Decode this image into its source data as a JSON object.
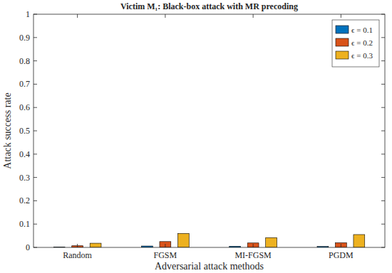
{
  "chart_data": {
    "type": "bar",
    "title": "Victim M₁: Black-box attack with MR precoding",
    "x_label": "Adversarial attack methods",
    "y_label": "Attack success rate",
    "categories": [
      "Random",
      "FGSM",
      "MI-FGSM",
      "PGDM"
    ],
    "series": [
      {
        "name": "ϵ = 0.1",
        "color": "#0072bd",
        "values": [
          0.002,
          0.006,
          0.005,
          0.004
        ]
      },
      {
        "name": "ϵ = 0.2",
        "color": "#d95319",
        "values": [
          0.007,
          0.025,
          0.019,
          0.02
        ]
      },
      {
        "name": "ϵ = 0.3",
        "color": "#edb120",
        "values": [
          0.018,
          0.06,
          0.042,
          0.055
        ]
      }
    ],
    "ylim": [
      0,
      1
    ],
    "yticks": [
      0,
      0.1,
      0.2,
      0.3,
      0.4,
      0.5,
      0.6,
      0.7,
      0.8,
      0.9,
      1
    ],
    "grid": false,
    "legend": "top-right"
  }
}
